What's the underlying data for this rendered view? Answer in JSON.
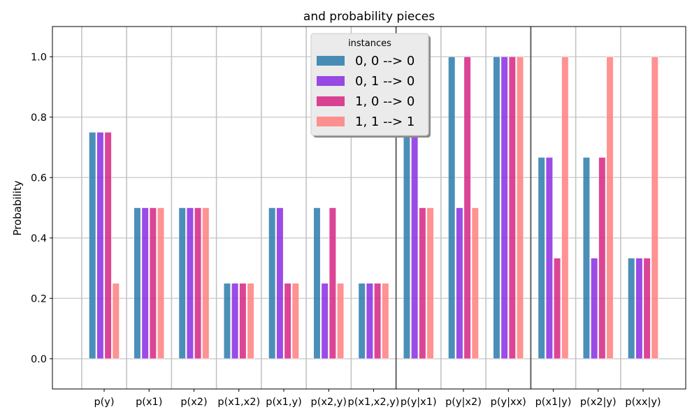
{
  "chart_data": {
    "type": "bar",
    "title": "and probability pieces",
    "xlabel": "",
    "ylabel": "Probability",
    "ylim": [
      -0.1,
      1.1
    ],
    "yticks": [
      "0.0",
      "0.2",
      "0.4",
      "0.6",
      "0.8",
      "1.0"
    ],
    "yticks_values": [
      0.0,
      0.2,
      0.4,
      0.6,
      0.8,
      1.0
    ],
    "grid": true,
    "categories": [
      "p(y)",
      "p(x1)",
      "p(x2)",
      "p(x1,x2)",
      "p(x1,y)",
      "p(x2,y)",
      "p(x1,x2,y)",
      "p(y|x1)",
      "p(y|x2)",
      "p(y|xx)",
      "p(x1|y)",
      "p(x2|y)",
      "p(xx|y)"
    ],
    "dark_separators_after_index": [
      6,
      9
    ],
    "legend": {
      "title": "instances",
      "placement": "upper center"
    },
    "series": [
      {
        "name": "0, 0 --> 0",
        "color": "#2b7bab",
        "values": [
          0.75,
          0.5,
          0.5,
          0.25,
          0.5,
          0.5,
          0.25,
          1.0,
          1.0,
          1.0,
          0.6667,
          0.6667,
          0.3333
        ]
      },
      {
        "name": "0, 1 --> 0",
        "color": "#8a2be2",
        "values": [
          0.75,
          0.5,
          0.5,
          0.25,
          0.5,
          0.25,
          0.25,
          1.0,
          0.5,
          1.0,
          0.6667,
          0.3333,
          0.3333
        ]
      },
      {
        "name": "1, 0 --> 0",
        "color": "#d62582",
        "values": [
          0.75,
          0.5,
          0.5,
          0.25,
          0.25,
          0.5,
          0.25,
          0.5,
          1.0,
          1.0,
          0.3333,
          0.6667,
          0.3333
        ]
      },
      {
        "name": "1, 1 --> 1",
        "color": "#ff7f7f",
        "values": [
          0.25,
          0.5,
          0.5,
          0.25,
          0.25,
          0.25,
          0.25,
          0.5,
          0.5,
          1.0,
          1.0,
          1.0,
          1.0
        ]
      }
    ]
  }
}
